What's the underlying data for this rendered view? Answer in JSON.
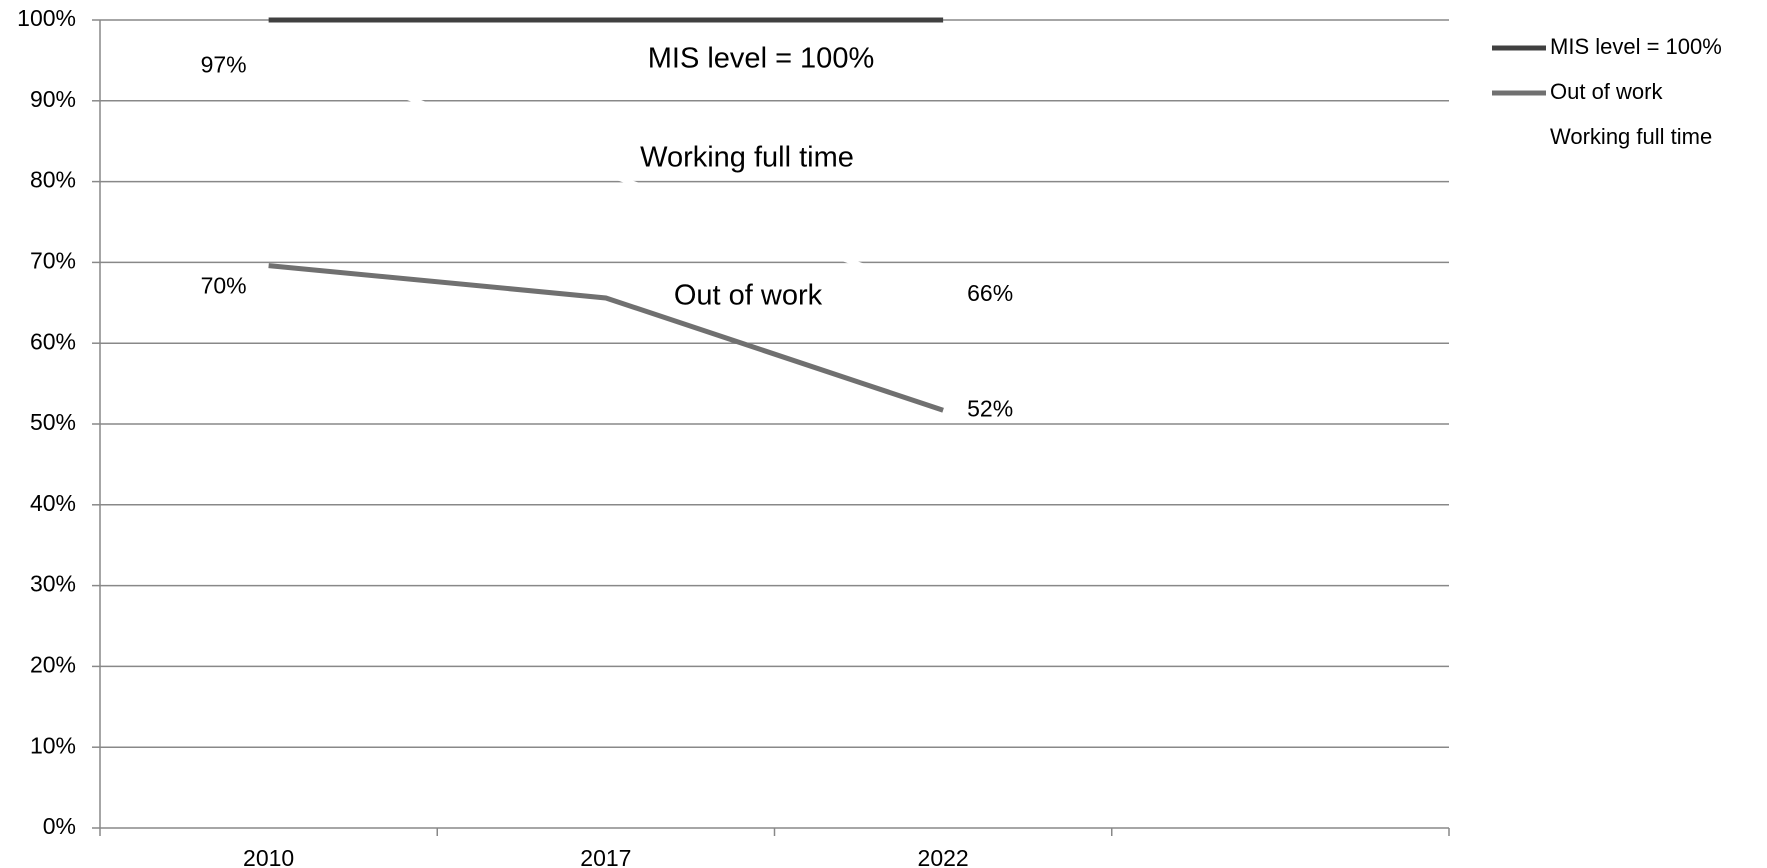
{
  "chart_data": {
    "type": "line",
    "categories": [
      "2010",
      "2017",
      "2022",
      null
    ],
    "series": [
      {
        "name": "MIS level = 100%",
        "color": "#404040",
        "values": [
          100,
          100,
          100,
          null
        ],
        "value_labels": [
          null,
          null,
          null,
          null
        ]
      },
      {
        "name": "Out of work",
        "color": "#707070",
        "values": [
          69.6,
          65.6,
          51.7,
          null
        ],
        "value_labels": [
          "70%",
          null,
          "52%",
          null
        ]
      },
      {
        "name": "Working full time",
        "color": "#ffffff",
        "values": [
          97,
          81,
          66,
          null
        ],
        "value_labels": [
          "97%",
          null,
          "66%",
          null
        ]
      }
    ],
    "annotations": [
      "MIS level = 100%",
      "Working full time",
      "Out of work"
    ],
    "ylim": [
      0,
      100
    ],
    "yticks": [
      {
        "value": 0,
        "label": "0%"
      },
      {
        "value": 10,
        "label": "10%"
      },
      {
        "value": 20,
        "label": "20%"
      },
      {
        "value": 30,
        "label": "30%"
      },
      {
        "value": 40,
        "label": "40%"
      },
      {
        "value": 50,
        "label": "50%"
      },
      {
        "value": 60,
        "label": "60%"
      },
      {
        "value": 70,
        "label": "70%"
      },
      {
        "value": 80,
        "label": "80%"
      },
      {
        "value": 90,
        "label": "90%"
      },
      {
        "value": 100,
        "label": "100%"
      }
    ],
    "grid": true,
    "legend": "right"
  }
}
